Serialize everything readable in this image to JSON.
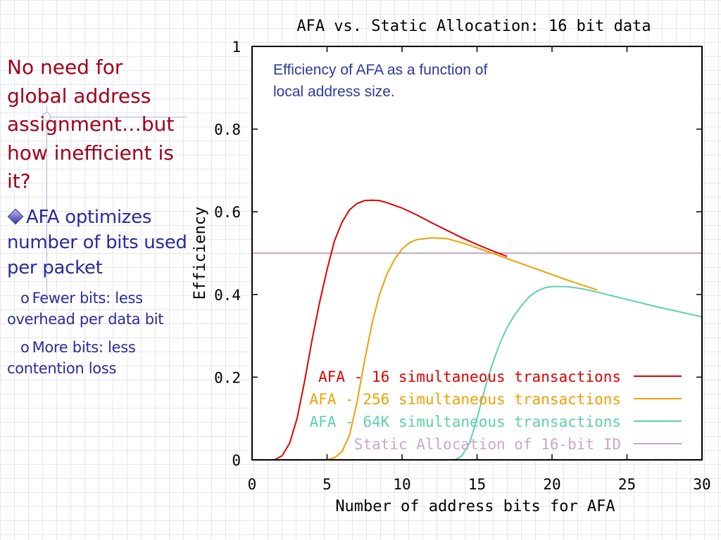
{
  "slide": {
    "title": "No need for global address assignment…but how inefficient is it?",
    "bullet": "AFA optimizes number of bits used per packet",
    "sub_bullets": [
      {
        "marker": "o",
        "text": "Fewer bits: less overhead per data bit"
      },
      {
        "marker": "o",
        "text": "More bits: less contention loss"
      }
    ]
  },
  "colors": {
    "title": "#a00018",
    "bullet_text": "#2a2a9c",
    "annotation": "#2a3a9c"
  },
  "chart_data": {
    "type": "line",
    "title": "AFA vs. Static Allocation: 16 bit data",
    "xlabel": "Number of address bits for AFA",
    "ylabel": "Efficiency",
    "xlim": [
      0,
      30
    ],
    "ylim": [
      0,
      1
    ],
    "x_ticks": [
      "0",
      "5",
      "10",
      "15",
      "20",
      "25",
      "30"
    ],
    "y_ticks": [
      "0",
      "0.2",
      "0.4",
      "0.6",
      "0.8",
      "1"
    ],
    "annotation": "Efficiency of AFA as a function of local address size.",
    "legend_position": "bottom-right",
    "grid": false,
    "series": [
      {
        "name": "AFA - 16 simultaneous transactions",
        "color": "#e00000",
        "points": [
          [
            0,
            0
          ],
          [
            1.5,
            0
          ],
          [
            2,
            0.01
          ],
          [
            2.5,
            0.04
          ],
          [
            3,
            0.1
          ],
          [
            3.5,
            0.19
          ],
          [
            4,
            0.29
          ],
          [
            4.5,
            0.38
          ],
          [
            5,
            0.46
          ],
          [
            5.5,
            0.53
          ],
          [
            6,
            0.575
          ],
          [
            6.5,
            0.605
          ],
          [
            7,
            0.62
          ],
          [
            7.5,
            0.627
          ],
          [
            8,
            0.628
          ],
          [
            8.5,
            0.627
          ],
          [
            9,
            0.622
          ],
          [
            10,
            0.609
          ],
          [
            11,
            0.592
          ],
          [
            12,
            0.573
          ],
          [
            13,
            0.555
          ],
          [
            14,
            0.537
          ],
          [
            15,
            0.521
          ],
          [
            16,
            0.506
          ],
          [
            17,
            0.492
          ]
        ]
      },
      {
        "name": "AFA - 256 simultaneous transactions",
        "color": "#f0a000",
        "points": [
          [
            0,
            0
          ],
          [
            5,
            0
          ],
          [
            5.5,
            0.005
          ],
          [
            6,
            0.02
          ],
          [
            6.5,
            0.06
          ],
          [
            7,
            0.14
          ],
          [
            7.5,
            0.24
          ],
          [
            8,
            0.33
          ],
          [
            8.5,
            0.4
          ],
          [
            9,
            0.45
          ],
          [
            9.5,
            0.485
          ],
          [
            10,
            0.51
          ],
          [
            10.5,
            0.525
          ],
          [
            11,
            0.533
          ],
          [
            12,
            0.537
          ],
          [
            13,
            0.535
          ],
          [
            14,
            0.525
          ],
          [
            15,
            0.513
          ],
          [
            16,
            0.5
          ],
          [
            17,
            0.487
          ],
          [
            18,
            0.474
          ],
          [
            19,
            0.461
          ],
          [
            20,
            0.448
          ],
          [
            21,
            0.435
          ],
          [
            22,
            0.423
          ],
          [
            23,
            0.411
          ]
        ]
      },
      {
        "name": "AFA - 64K simultaneous transactions",
        "color": "#60d0a8",
        "points": [
          [
            0,
            0
          ],
          [
            13.5,
            0
          ],
          [
            14,
            0.01
          ],
          [
            14.5,
            0.04
          ],
          [
            15,
            0.1
          ],
          [
            15.5,
            0.17
          ],
          [
            16,
            0.23
          ],
          [
            16.5,
            0.28
          ],
          [
            17,
            0.32
          ],
          [
            17.5,
            0.35
          ],
          [
            18,
            0.375
          ],
          [
            18.5,
            0.395
          ],
          [
            19,
            0.408
          ],
          [
            19.5,
            0.416
          ],
          [
            20,
            0.419
          ],
          [
            21,
            0.419
          ],
          [
            22,
            0.414
          ],
          [
            23,
            0.406
          ],
          [
            24,
            0.397
          ],
          [
            25,
            0.388
          ],
          [
            26,
            0.379
          ],
          [
            27,
            0.37
          ],
          [
            28,
            0.362
          ],
          [
            29,
            0.354
          ],
          [
            30,
            0.346
          ]
        ]
      },
      {
        "name": "Static Allocation of 16-bit ID",
        "color": "#c8a8c8",
        "points": [
          [
            0,
            0.5
          ],
          [
            30,
            0.5
          ]
        ]
      }
    ]
  }
}
